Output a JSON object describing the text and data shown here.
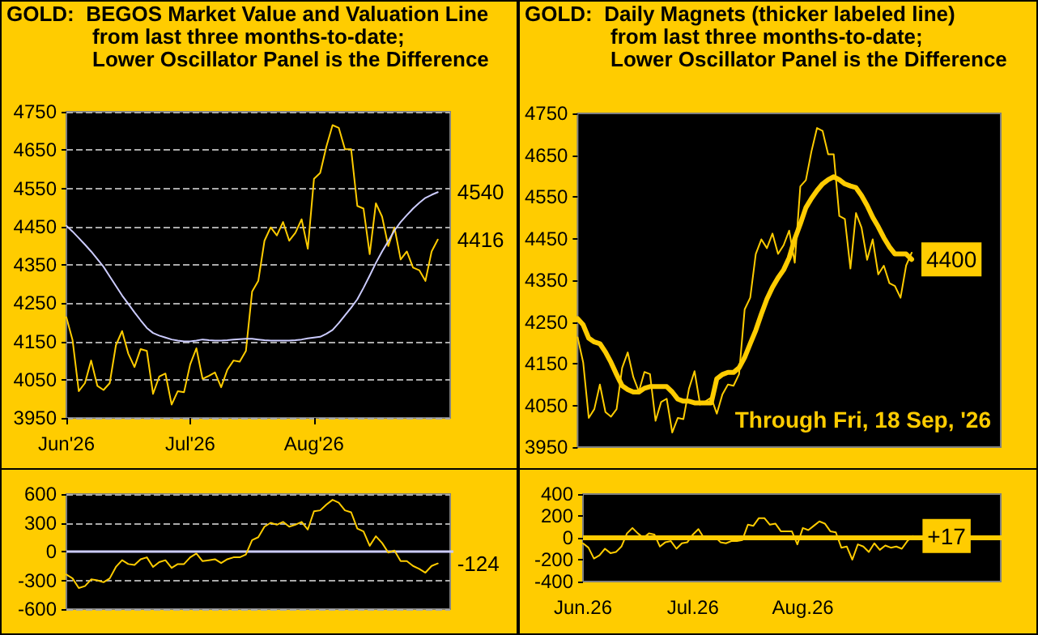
{
  "chart_data": [
    {
      "type": "line",
      "title": "GOLD:  BEGOS Market Value and Valuation Line\nfrom last three months-to-date;\nLower Oscillator Panel is the Difference",
      "categories": [
        "Jun'26",
        null,
        null,
        null,
        null,
        null,
        null,
        null,
        null,
        null,
        null,
        null,
        null,
        null,
        null,
        null,
        null,
        null,
        null,
        null,
        "Jul'26",
        null,
        null,
        null,
        null,
        null,
        null,
        null,
        null,
        null,
        null,
        null,
        null,
        null,
        null,
        null,
        null,
        null,
        null,
        null,
        "Aug'26",
        null,
        null,
        null,
        null,
        null,
        null,
        null,
        null,
        null,
        null,
        null,
        null,
        null,
        null,
        null,
        null,
        null,
        null,
        null,
        null,
        null,
        null
      ],
      "series": [
        {
          "color": "#ffcc00",
          "values": [
            4213,
            4153,
            4020,
            4041,
            4100,
            4034,
            4023,
            4041,
            4140,
            4177,
            4118,
            4083,
            4130,
            4125,
            4013,
            4058,
            4066,
            3985,
            4020,
            4017,
            4090,
            4132,
            4052,
            4060,
            4069,
            4030,
            4076,
            4100,
            4097,
            4125,
            4280,
            4308,
            4413,
            4448,
            4427,
            4462,
            4413,
            4434,
            4469,
            4392,
            4575,
            4590,
            4659,
            4715,
            4708,
            4652,
            4652,
            4504,
            4497,
            4378,
            4511,
            4476,
            4399,
            4448,
            4364,
            4385,
            4343,
            4336,
            4308,
            4385,
            4416,
            null,
            null
          ],
          "value_labels": [
            null,
            null,
            null,
            null,
            null,
            null,
            null,
            null,
            null,
            null,
            null,
            null,
            null,
            null,
            null,
            null,
            null,
            null,
            null,
            null,
            null,
            null,
            null,
            null,
            null,
            null,
            null,
            null,
            null,
            null,
            null,
            null,
            null,
            null,
            null,
            null,
            null,
            null,
            null,
            null,
            null,
            null,
            null,
            null,
            null,
            null,
            null,
            null,
            null,
            null,
            null,
            null,
            null,
            null,
            null,
            null,
            null,
            null,
            null,
            null,
            "4416",
            null,
            null
          ]
        },
        {
          "color": "#ccccff",
          "values": [
            4452,
            4437,
            4420,
            4403,
            4385,
            4365,
            4345,
            4320,
            4295,
            4270,
            4248,
            4226,
            4205,
            4185,
            4172,
            4165,
            4160,
            4155,
            4152,
            4150,
            4150,
            4152,
            4155,
            4153,
            4152,
            4152,
            4153,
            4155,
            4156,
            4157,
            4157,
            4155,
            4153,
            4152,
            4152,
            4152,
            4152,
            4153,
            4155,
            4158,
            4160,
            4162,
            4170,
            4180,
            4198,
            4218,
            4238,
            4260,
            4290,
            4322,
            4355,
            4385,
            4412,
            4440,
            4462,
            4480,
            4497,
            4512,
            4525,
            4533,
            4540,
            null,
            null
          ],
          "value_labels": [
            null,
            null,
            null,
            null,
            null,
            null,
            null,
            null,
            null,
            null,
            null,
            null,
            null,
            null,
            null,
            null,
            null,
            null,
            null,
            null,
            null,
            null,
            null,
            null,
            null,
            null,
            null,
            null,
            null,
            null,
            null,
            null,
            null,
            null,
            null,
            null,
            null,
            null,
            null,
            null,
            null,
            null,
            null,
            null,
            null,
            null,
            null,
            null,
            null,
            null,
            null,
            null,
            null,
            null,
            null,
            null,
            null,
            null,
            null,
            null,
            "4540",
            null,
            null
          ]
        }
      ],
      "ylim": [
        3950,
        4750
      ],
      "yticks": [
        3950,
        4050,
        4150,
        4250,
        4350,
        4450,
        4550,
        4650,
        4750
      ],
      "grid": "y"
    },
    {
      "type": "line",
      "title": "GOLD:  Daily Magnets (thicker labeled line)\nfrom last three months-to-date;\nLower Oscillator Panel is the Difference",
      "categories": [
        null,
        null,
        null,
        null,
        null,
        null,
        null,
        null,
        null,
        null,
        null,
        null,
        null,
        null,
        null,
        null,
        null,
        null,
        null,
        null,
        null,
        null,
        null,
        null,
        null,
        null,
        null,
        null,
        null,
        null,
        null,
        null,
        null,
        null,
        null,
        null,
        null,
        null,
        null,
        null,
        null,
        null,
        null,
        null,
        null,
        null,
        null,
        null,
        null,
        null,
        null,
        null,
        null,
        null,
        null,
        null,
        null,
        null,
        null,
        null,
        null,
        null,
        null,
        null,
        null,
        null,
        null,
        null,
        null,
        null,
        null,
        null,
        null,
        null,
        null,
        null,
        null
      ],
      "series": [
        {
          "color": "#ffcc00",
          "values": [
            4213,
            4153,
            4020,
            4041,
            4100,
            4034,
            4023,
            4041,
            4140,
            4177,
            4118,
            4083,
            4130,
            4125,
            4013,
            4058,
            4066,
            3985,
            4020,
            4017,
            4090,
            4132,
            4052,
            4060,
            4069,
            4030,
            4076,
            4100,
            4097,
            4125,
            4280,
            4308,
            4413,
            4448,
            4427,
            4462,
            4413,
            4434,
            4469,
            4392,
            4575,
            4590,
            4659,
            4715,
            4708,
            4652,
            4652,
            4504,
            4497,
            4378,
            4511,
            4476,
            4399,
            4448,
            4364,
            4385,
            4343,
            4336,
            4308,
            4385,
            4416,
            null,
            null,
            null,
            null,
            null,
            null,
            null,
            null,
            null,
            null,
            null,
            null,
            null,
            null,
            null,
            null
          ]
        },
        {
          "color": "#ffcc00",
          "values": [
            4258,
            4243,
            4211,
            4202,
            4198,
            4178,
            4153,
            4124,
            4097,
            4088,
            4082,
            4082,
            4091,
            4095,
            4095,
            4095,
            4095,
            4082,
            4065,
            4060,
            4060,
            4056,
            4056,
            4056,
            4056,
            4114,
            4124,
            4129,
            4129,
            4140,
            4165,
            4198,
            4230,
            4269,
            4305,
            4333,
            4356,
            4375,
            4404,
            4449,
            4485,
            4524,
            4546,
            4565,
            4581,
            4591,
            4598,
            4591,
            4581,
            4576,
            4572,
            4553,
            4529,
            4501,
            4478,
            4452,
            4430,
            4413,
            4413,
            4413,
            4400,
            null,
            null,
            null,
            null,
            null,
            null,
            null,
            null,
            null,
            null,
            null,
            null,
            null,
            null,
            null,
            null
          ],
          "value_labels": [
            null,
            null,
            null,
            null,
            null,
            null,
            null,
            null,
            null,
            null,
            null,
            null,
            null,
            null,
            null,
            null,
            null,
            null,
            null,
            null,
            null,
            null,
            null,
            null,
            null,
            null,
            null,
            null,
            null,
            null,
            null,
            null,
            null,
            null,
            null,
            null,
            null,
            null,
            null,
            null,
            null,
            null,
            null,
            null,
            null,
            null,
            null,
            null,
            null,
            null,
            null,
            null,
            null,
            null,
            null,
            null,
            null,
            null,
            null,
            null,
            "4400",
            null,
            null,
            null,
            null,
            null,
            null,
            null,
            null,
            null,
            null,
            null,
            null,
            null,
            null,
            null,
            null
          ]
        }
      ],
      "ylim": [
        3950,
        4750
      ],
      "yticks": [
        3950,
        4050,
        4150,
        4250,
        4350,
        4450,
        4550,
        4650,
        4750
      ],
      "tick_labels": "y",
      "annotations": [
        "Through Fri, 18 Sep, '26"
      ]
    },
    {
      "type": "line",
      "categories": [
        null,
        null,
        null,
        null,
        null,
        null,
        null,
        null,
        null,
        null,
        null,
        null,
        null,
        null,
        null,
        null,
        null,
        null,
        null,
        null,
        null,
        null,
        null,
        null,
        null,
        null,
        null,
        null,
        null,
        null,
        null,
        null,
        null,
        null,
        null,
        null,
        null,
        null,
        null,
        null,
        null,
        null,
        null,
        null,
        null,
        null,
        null,
        null,
        null,
        null,
        null,
        null,
        null,
        null,
        null,
        null,
        null,
        null,
        null,
        null,
        null,
        null,
        null
      ],
      "series": [
        {
          "color": "#ffcc00",
          "values": [
            -240,
            -280,
            -380,
            -360,
            -290,
            -300,
            -320,
            -280,
            -160,
            -90,
            -130,
            -140,
            -80,
            -60,
            -160,
            -110,
            -90,
            -170,
            -130,
            -130,
            -60,
            -20,
            -100,
            -90,
            -80,
            -120,
            -80,
            -60,
            -60,
            -30,
            120,
            150,
            260,
            300,
            280,
            310,
            260,
            280,
            310,
            230,
            420,
            430,
            490,
            540,
            510,
            430,
            410,
            240,
            210,
            60,
            160,
            90,
            -10,
            10,
            -100,
            -100,
            -150,
            -180,
            -220,
            -150,
            -124,
            null,
            null
          ],
          "value_labels": [
            null,
            null,
            null,
            null,
            null,
            null,
            null,
            null,
            null,
            null,
            null,
            null,
            null,
            null,
            null,
            null,
            null,
            null,
            null,
            null,
            null,
            null,
            null,
            null,
            null,
            null,
            null,
            null,
            null,
            null,
            null,
            null,
            null,
            null,
            null,
            null,
            null,
            null,
            null,
            null,
            null,
            null,
            null,
            null,
            null,
            null,
            null,
            null,
            null,
            null,
            null,
            null,
            null,
            null,
            null,
            null,
            null,
            null,
            null,
            null,
            "-124",
            null,
            null
          ]
        }
      ],
      "ylim": [
        -600,
        600
      ],
      "yticks": [
        -600,
        -300,
        0,
        300,
        600
      ],
      "grid": "y",
      "tick_labels": "y",
      "ref_lines": [
        {
          "axis": "y",
          "value": 0,
          "color": "#ccccff"
        }
      ]
    },
    {
      "type": "line",
      "categories": [
        "Jun.26",
        null,
        null,
        null,
        null,
        null,
        null,
        null,
        null,
        null,
        null,
        null,
        null,
        null,
        null,
        null,
        null,
        null,
        null,
        null,
        "Jul.26",
        null,
        null,
        null,
        null,
        null,
        null,
        null,
        null,
        null,
        null,
        null,
        null,
        null,
        null,
        null,
        null,
        null,
        null,
        null,
        "Aug.26",
        null,
        null,
        null,
        null,
        null,
        null,
        null,
        null,
        null,
        null,
        null,
        null,
        null,
        null,
        null,
        null,
        null,
        null,
        null,
        null,
        null,
        null,
        null,
        null,
        null,
        null,
        null,
        null,
        null,
        null,
        null,
        null,
        null,
        null,
        null,
        null
      ],
      "series": [
        {
          "color": "#ffcc00",
          "values": [
            -50,
            -90,
            -190,
            -160,
            -100,
            -140,
            -130,
            -80,
            40,
            90,
            40,
            0,
            40,
            30,
            -80,
            -40,
            -30,
            -100,
            -50,
            -40,
            30,
            80,
            0,
            0,
            10,
            -40,
            -50,
            -30,
            -30,
            -20,
            120,
            110,
            180,
            180,
            120,
            130,
            60,
            60,
            60,
            -60,
            90,
            70,
            110,
            150,
            130,
            60,
            50,
            -90,
            -80,
            -200,
            -60,
            -80,
            -130,
            -50,
            -110,
            -70,
            -90,
            -80,
            -100,
            -30,
            17,
            null,
            null,
            null,
            null,
            null,
            null,
            null,
            null,
            null,
            null,
            null,
            null,
            null,
            null,
            null,
            null
          ],
          "value_labels": [
            null,
            null,
            null,
            null,
            null,
            null,
            null,
            null,
            null,
            null,
            null,
            null,
            null,
            null,
            null,
            null,
            null,
            null,
            null,
            null,
            null,
            null,
            null,
            null,
            null,
            null,
            null,
            null,
            null,
            null,
            null,
            null,
            null,
            null,
            null,
            null,
            null,
            null,
            null,
            null,
            null,
            null,
            null,
            null,
            null,
            null,
            null,
            null,
            null,
            null,
            null,
            null,
            null,
            null,
            null,
            null,
            null,
            null,
            null,
            null,
            "+17",
            null,
            null,
            null,
            null,
            null,
            null,
            null,
            null,
            null,
            null,
            null,
            null,
            null,
            null,
            null,
            null
          ]
        }
      ],
      "ylim": [
        -400,
        400
      ],
      "yticks": [
        -400,
        -200,
        0,
        200,
        400
      ],
      "ref_lines": [
        {
          "axis": "y",
          "value": 0,
          "color": "#ffcc00"
        }
      ]
    }
  ]
}
